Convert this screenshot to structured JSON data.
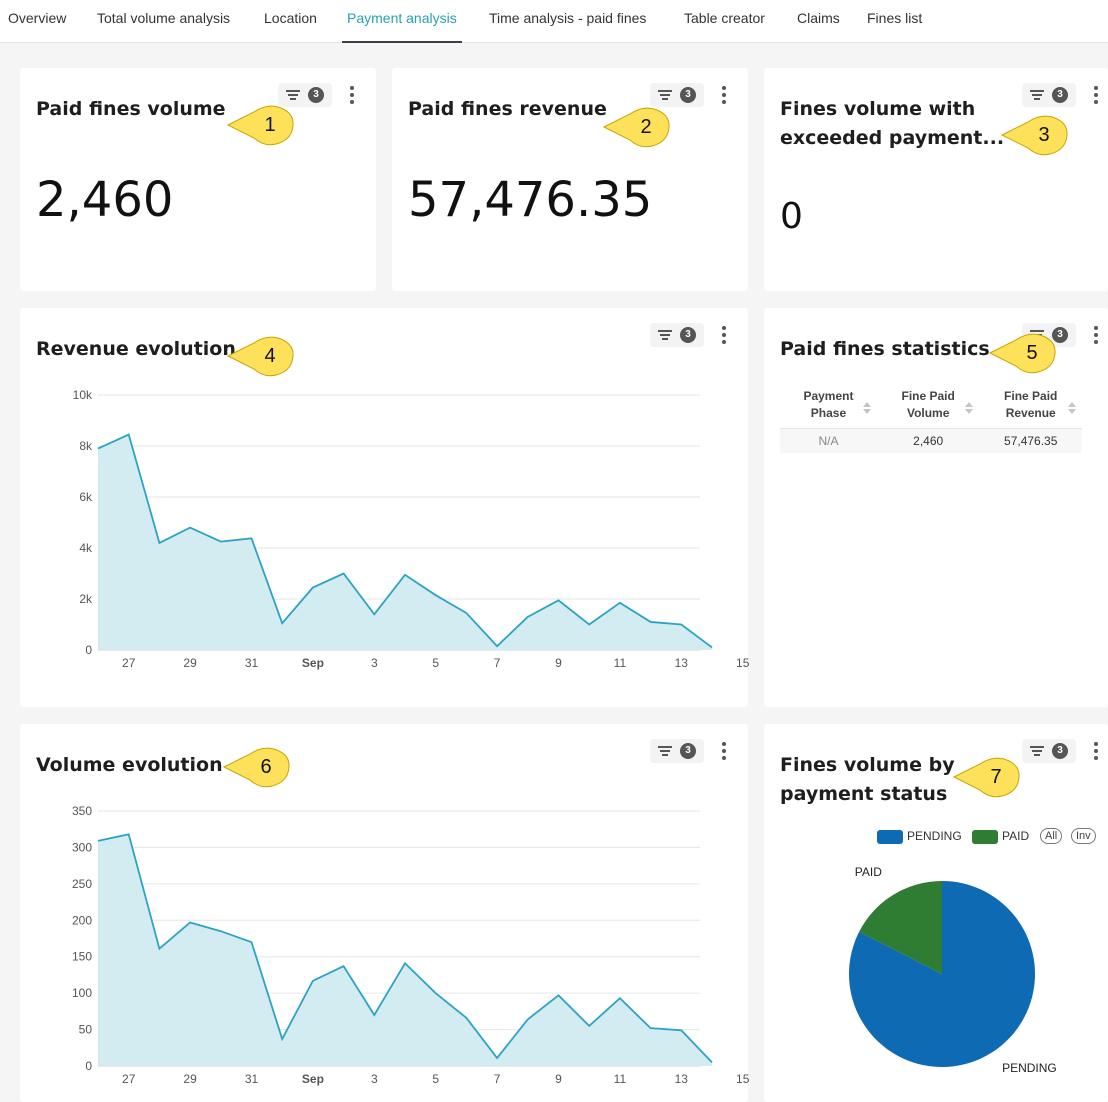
{
  "tabs": [
    {
      "label": "Overview"
    },
    {
      "label": "Total volume analysis"
    },
    {
      "label": "Location"
    },
    {
      "label": "Payment analysis"
    },
    {
      "label": "Time analysis - paid fines"
    },
    {
      "label": "Table creator"
    },
    {
      "label": "Claims"
    },
    {
      "label": "Fines list"
    }
  ],
  "active_tab": "Payment analysis",
  "filter_count": "3",
  "cards": {
    "paid_volume": {
      "title": "Paid fines volume",
      "value": "2,460",
      "callout": "1"
    },
    "paid_revenue": {
      "title": "Paid fines revenue",
      "value": "57,476.35",
      "callout": "2"
    },
    "exceeded": {
      "title_line1": "Fines volume with",
      "title_line2": "exceeded payment...",
      "value": "0",
      "callout": "3"
    },
    "revenue_evolution": {
      "title": "Revenue evolution",
      "callout": "4"
    },
    "stats": {
      "title": "Paid fines statistics",
      "callout": "5",
      "headers": [
        {
          "line1": "Payment",
          "line2": "Phase"
        },
        {
          "line1": "Fine Paid",
          "line2": "Volume"
        },
        {
          "line1": "Fine Paid",
          "line2": "Revenue"
        }
      ],
      "rows": [
        [
          "N/A",
          "2,460",
          "57,476.35"
        ]
      ]
    },
    "volume_evolution": {
      "title": "Volume evolution",
      "callout": "6"
    },
    "status": {
      "title_line1": "Fines volume by",
      "title_line2": "payment status",
      "callout": "7",
      "legend": [
        {
          "label": "PENDING",
          "color": "#0f6ab4"
        },
        {
          "label": "PAID",
          "color": "#2e7d32"
        }
      ],
      "legend_all": "All",
      "legend_inv": "Inv"
    }
  },
  "chart_data": [
    {
      "type": "area",
      "name": "revenue_evolution",
      "x_tick_labels": [
        "27",
        "29",
        "31",
        "Sep",
        "3",
        "5",
        "7",
        "9",
        "11",
        "13",
        "15"
      ],
      "y_tick_labels": [
        "0",
        "2k",
        "4k",
        "6k",
        "8k",
        "10k"
      ],
      "ylim": [
        0,
        10000
      ],
      "x": [
        "Aug 26",
        "Aug 27",
        "Aug 28",
        "Aug 29",
        "Aug 30",
        "Aug 31",
        "Sep 1",
        "Sep 2",
        "Sep 3",
        "Sep 4",
        "Sep 5",
        "Sep 6",
        "Sep 7",
        "Sep 8",
        "Sep 9",
        "Sep 10",
        "Sep 11",
        "Sep 12",
        "Sep 13",
        "Sep 14",
        "Sep 15"
      ],
      "values": [
        7900,
        8450,
        4200,
        4800,
        4250,
        4380,
        1050,
        2450,
        3000,
        1400,
        2950,
        2150,
        1450,
        150,
        1300,
        1950,
        1000,
        1850,
        1100,
        1000,
        100
      ],
      "color": "#2ba3c4",
      "fill": "#d2ecf2",
      "grid": true
    },
    {
      "type": "area",
      "name": "volume_evolution",
      "x_tick_labels": [
        "27",
        "29",
        "31",
        "Sep",
        "3",
        "5",
        "7",
        "9",
        "11",
        "13",
        "15"
      ],
      "y_tick_labels": [
        "0",
        "50",
        "100",
        "150",
        "200",
        "250",
        "300",
        "350"
      ],
      "ylim": [
        0,
        350
      ],
      "x": [
        "Aug 26",
        "Aug 27",
        "Aug 28",
        "Aug 29",
        "Aug 30",
        "Aug 31",
        "Sep 1",
        "Sep 2",
        "Sep 3",
        "Sep 4",
        "Sep 5",
        "Sep 6",
        "Sep 7",
        "Sep 8",
        "Sep 9",
        "Sep 10",
        "Sep 11",
        "Sep 12",
        "Sep 13",
        "Sep 14",
        "Sep 15"
      ],
      "values": [
        309,
        318,
        161,
        197,
        185,
        170,
        37,
        117,
        137,
        70,
        141,
        100,
        66,
        11,
        64,
        97,
        55,
        93,
        52,
        49,
        5
      ],
      "color": "#2ba3c4",
      "fill": "#d2ecf2",
      "grid": true
    },
    {
      "type": "pie",
      "name": "fines_by_payment_status",
      "labels": [
        "PENDING",
        "PAID"
      ],
      "values": [
        82.5,
        17.5
      ],
      "colors": [
        "#0f6ab4",
        "#2e7d32"
      ]
    }
  ]
}
